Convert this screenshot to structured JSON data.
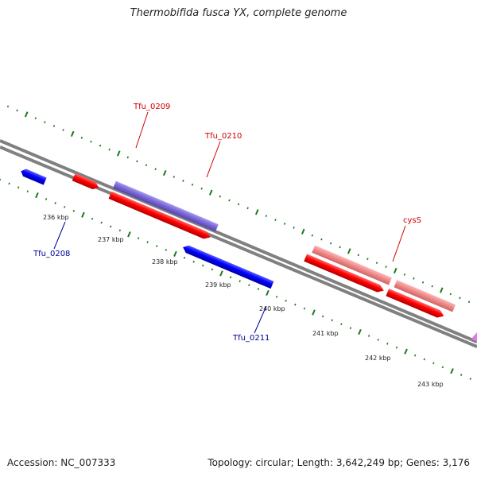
{
  "title": "Thermobifida fusca YX, complete genome",
  "footer": {
    "accession": "Accession: NC_007333",
    "topology": "Topology: circular; Length: 3,642,249 bp; Genes: 3,176"
  },
  "ticks": [
    "236 kbp",
    "237 kbp",
    "238 kbp",
    "239 kbp",
    "240 kbp",
    "241 kbp",
    "242 kbp",
    "243 kbp"
  ],
  "gene_labels": {
    "tfu_0209": "Tfu_0209",
    "tfu_0210": "Tfu_0210",
    "cysS": "cysS",
    "tfu_0208": "Tfu_0208",
    "tfu_0211": "Tfu_0211"
  },
  "colors": {
    "backbone": "#808080",
    "tick_dots": "#1a7a1a",
    "forward_cds": "#ff0000",
    "reverse_cds": "#0000ff",
    "highlight_forward": "#7a68d8",
    "pink_cds": "#f28a8a",
    "green_cds": "#44cc44",
    "label_red": "#cc0000",
    "label_blue": "#000099"
  }
}
